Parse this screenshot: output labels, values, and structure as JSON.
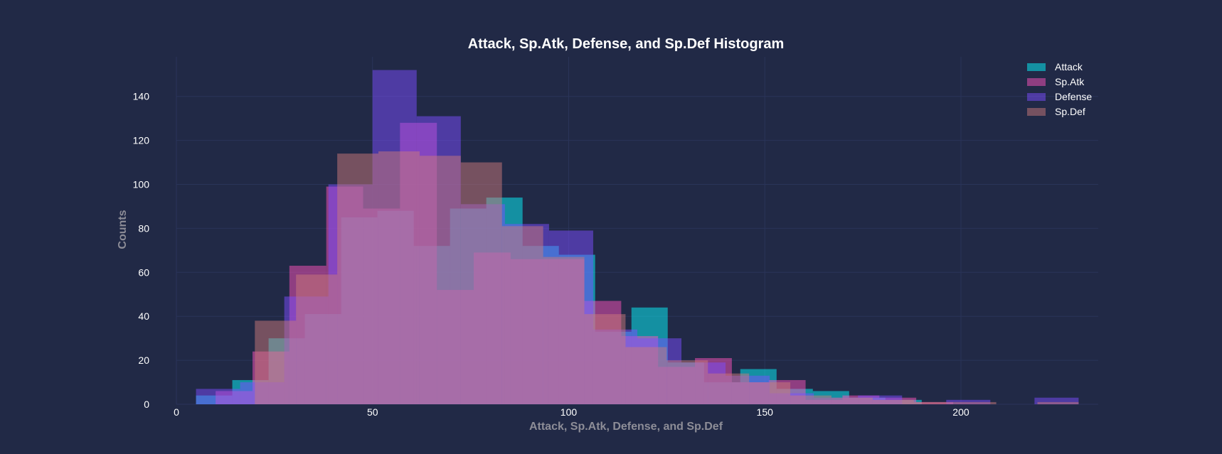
{
  "chart_data": {
    "type": "histogram",
    "title": "Attack, Sp.Atk, Defense, and Sp.Def Histogram",
    "xlabel": "Attack, Sp.Atk, Defense, and Sp.Def",
    "ylabel": "Counts",
    "xlim": [
      0,
      235
    ],
    "ylim": [
      0,
      158
    ],
    "x_ticks": [
      0,
      50,
      100,
      150,
      200
    ],
    "y_ticks": [
      0,
      20,
      40,
      60,
      80,
      100,
      120,
      140
    ],
    "grid": true,
    "legend_position": "top-right",
    "series": [
      {
        "name": "Attack",
        "color": "#08F7FE",
        "bins": [
          {
            "x0": 5,
            "x1": 14.25,
            "count": 4
          },
          {
            "x0": 14.25,
            "x1": 23.5,
            "count": 11
          },
          {
            "x0": 23.5,
            "x1": 32.75,
            "count": 30
          },
          {
            "x0": 32.75,
            "x1": 42,
            "count": 41
          },
          {
            "x0": 42,
            "x1": 51.25,
            "count": 85
          },
          {
            "x0": 51.25,
            "x1": 60.5,
            "count": 88
          },
          {
            "x0": 60.5,
            "x1": 69.75,
            "count": 72
          },
          {
            "x0": 69.75,
            "x1": 79,
            "count": 89
          },
          {
            "x0": 79,
            "x1": 88.25,
            "count": 94
          },
          {
            "x0": 88.25,
            "x1": 97.5,
            "count": 72
          },
          {
            "x0": 97.5,
            "x1": 106.75,
            "count": 68
          },
          {
            "x0": 106.75,
            "x1": 116,
            "count": 33
          },
          {
            "x0": 116,
            "x1": 125.25,
            "count": 44
          },
          {
            "x0": 125.25,
            "x1": 134.5,
            "count": 19
          },
          {
            "x0": 134.5,
            "x1": 143.75,
            "count": 10
          },
          {
            "x0": 143.75,
            "x1": 153,
            "count": 16
          },
          {
            "x0": 153,
            "x1": 162.25,
            "count": 7
          },
          {
            "x0": 162.25,
            "x1": 171.5,
            "count": 6
          },
          {
            "x0": 171.5,
            "x1": 180.75,
            "count": 3
          },
          {
            "x0": 180.75,
            "x1": 190,
            "count": 2
          }
        ]
      },
      {
        "name": "Sp.Atk",
        "color": "#FE53BB",
        "bins": [
          {
            "x0": 10,
            "x1": 19.4,
            "count": 6
          },
          {
            "x0": 19.4,
            "x1": 28.8,
            "count": 24
          },
          {
            "x0": 28.8,
            "x1": 38.2,
            "count": 63
          },
          {
            "x0": 38.2,
            "x1": 47.6,
            "count": 99
          },
          {
            "x0": 47.6,
            "x1": 57,
            "count": 89
          },
          {
            "x0": 57,
            "x1": 66.4,
            "count": 128
          },
          {
            "x0": 66.4,
            "x1": 75.8,
            "count": 52
          },
          {
            "x0": 75.8,
            "x1": 85.2,
            "count": 69
          },
          {
            "x0": 85.2,
            "x1": 94.6,
            "count": 66
          },
          {
            "x0": 94.6,
            "x1": 104,
            "count": 66
          },
          {
            "x0": 104,
            "x1": 113.4,
            "count": 47
          },
          {
            "x0": 113.4,
            "x1": 122.8,
            "count": 31
          },
          {
            "x0": 122.8,
            "x1": 132.2,
            "count": 17
          },
          {
            "x0": 132.2,
            "x1": 141.6,
            "count": 21
          },
          {
            "x0": 141.6,
            "x1": 151,
            "count": 10
          },
          {
            "x0": 151,
            "x1": 160.4,
            "count": 11
          },
          {
            "x0": 160.4,
            "x1": 169.8,
            "count": 2
          },
          {
            "x0": 169.8,
            "x1": 179.2,
            "count": 4
          },
          {
            "x0": 179.2,
            "x1": 188.6,
            "count": 3
          },
          {
            "x0": 188.6,
            "x1": 198,
            "count": 1
          }
        ]
      },
      {
        "name": "Defense",
        "color": "#7C4DFF",
        "bins": [
          {
            "x0": 5,
            "x1": 16.25,
            "count": 7
          },
          {
            "x0": 16.25,
            "x1": 27.5,
            "count": 10
          },
          {
            "x0": 27.5,
            "x1": 38.75,
            "count": 49
          },
          {
            "x0": 38.75,
            "x1": 50,
            "count": 100
          },
          {
            "x0": 50,
            "x1": 61.25,
            "count": 152
          },
          {
            "x0": 61.25,
            "x1": 72.5,
            "count": 131
          },
          {
            "x0": 72.5,
            "x1": 83.75,
            "count": 91
          },
          {
            "x0": 83.75,
            "x1": 95,
            "count": 82
          },
          {
            "x0": 95,
            "x1": 106.25,
            "count": 79
          },
          {
            "x0": 106.25,
            "x1": 117.5,
            "count": 34
          },
          {
            "x0": 117.5,
            "x1": 128.75,
            "count": 30
          },
          {
            "x0": 128.75,
            "x1": 140,
            "count": 19
          },
          {
            "x0": 140,
            "x1": 151.25,
            "count": 13
          },
          {
            "x0": 151.25,
            "x1": 162.5,
            "count": 5
          },
          {
            "x0": 162.5,
            "x1": 173.75,
            "count": 3
          },
          {
            "x0": 173.75,
            "x1": 185,
            "count": 4
          },
          {
            "x0": 185,
            "x1": 196.25,
            "count": 0
          },
          {
            "x0": 196.25,
            "x1": 207.5,
            "count": 2
          },
          {
            "x0": 207.5,
            "x1": 218.75,
            "count": 0
          },
          {
            "x0": 218.75,
            "x1": 230,
            "count": 3
          }
        ]
      },
      {
        "name": "Sp.Def",
        "color": "#CC7A7A",
        "bins": [
          {
            "x0": 20,
            "x1": 30.5,
            "count": 38
          },
          {
            "x0": 30.5,
            "x1": 41,
            "count": 59
          },
          {
            "x0": 41,
            "x1": 51.5,
            "count": 114
          },
          {
            "x0": 51.5,
            "x1": 62,
            "count": 115
          },
          {
            "x0": 62,
            "x1": 72.5,
            "count": 113
          },
          {
            "x0": 72.5,
            "x1": 83,
            "count": 110
          },
          {
            "x0": 83,
            "x1": 93.5,
            "count": 81
          },
          {
            "x0": 93.5,
            "x1": 104,
            "count": 67
          },
          {
            "x0": 104,
            "x1": 114.5,
            "count": 41
          },
          {
            "x0": 114.5,
            "x1": 125,
            "count": 26
          },
          {
            "x0": 125,
            "x1": 135.5,
            "count": 20
          },
          {
            "x0": 135.5,
            "x1": 146,
            "count": 14
          },
          {
            "x0": 146,
            "x1": 156.5,
            "count": 10
          },
          {
            "x0": 156.5,
            "x1": 167,
            "count": 4
          },
          {
            "x0": 167,
            "x1": 177.5,
            "count": 3
          },
          {
            "x0": 177.5,
            "x1": 188,
            "count": 2
          },
          {
            "x0": 188,
            "x1": 198.5,
            "count": 1
          },
          {
            "x0": 198.5,
            "x1": 209,
            "count": 1
          },
          {
            "x0": 209,
            "x1": 219.5,
            "count": 0
          },
          {
            "x0": 219.5,
            "x1": 230,
            "count": 1
          }
        ]
      }
    ]
  }
}
